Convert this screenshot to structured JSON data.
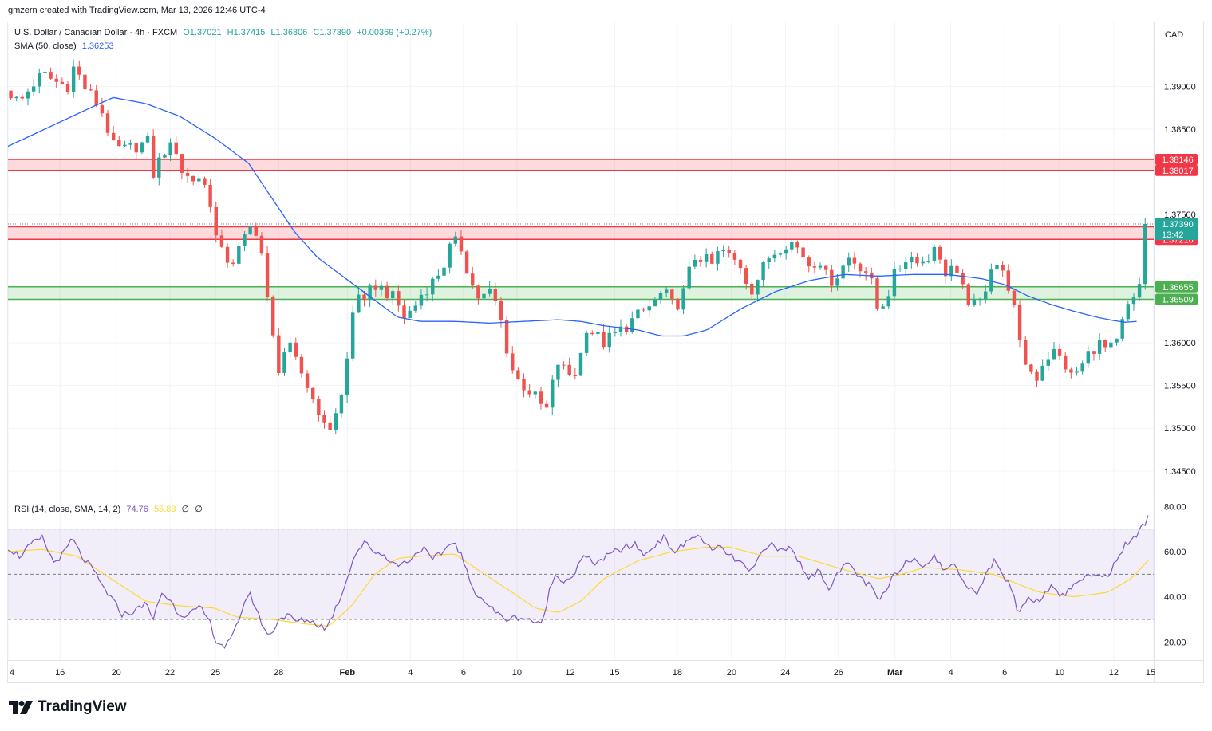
{
  "header": {
    "credit": "gmzern created with TradingView.com, Mar 13, 2026 12:46 UTC-4"
  },
  "legend": {
    "symbol": "U.S. Dollar / Canadian Dollar · 4h · FXCM",
    "open": "O1.37021",
    "high": "H1.37415",
    "low": "L1.36806",
    "close": "C1.37390",
    "change": "+0.00369 (+0.27%)",
    "sma_label": "SMA (50, close)",
    "sma_value": "1.36253",
    "rsi_label": "RSI (14, close, SMA, 14, 2)",
    "rsi_value": "74.76",
    "rsi_ma_value": "55.83",
    "rsi_extra1": "∅",
    "rsi_extra2": "∅"
  },
  "currency": "CAD",
  "brand": "TradingView",
  "colors": {
    "up": "#26a69a",
    "down": "#ef5350",
    "sma": "#2962ff",
    "rsi": "#7e57c2",
    "rsi_ma": "#fdd835",
    "resistance": "#f23645",
    "support": "#4caf50"
  },
  "chart_data": {
    "type": "candlestick",
    "price_axis": {
      "ylim": [
        1.342,
        1.3975
      ],
      "ticks": [
        "1.39000",
        "1.38500",
        "1.37500",
        "1.36000",
        "1.35500",
        "1.35000",
        "1.34500"
      ],
      "tick_values": [
        1.39,
        1.385,
        1.375,
        1.36,
        1.355,
        1.35,
        1.345
      ]
    },
    "time_axis": {
      "labels": [
        "4",
        "16",
        "20",
        "22",
        "25",
        "28",
        "Feb",
        "4",
        "6",
        "10",
        "12",
        "15",
        "18",
        "20",
        "24",
        "26",
        "Mar",
        "4",
        "6",
        "10",
        "12",
        "15"
      ],
      "positions": [
        0.0,
        0.0454,
        0.0945,
        0.1414,
        0.1811,
        0.2362,
        0.2962,
        0.3512,
        0.3976,
        0.4442,
        0.4906,
        0.5295,
        0.5842,
        0.6315,
        0.6785,
        0.7248,
        0.7742,
        0.8229,
        0.8699,
        0.9178,
        0.9651,
        1.0
      ]
    },
    "zones": [
      {
        "type": "resistance",
        "top": "1.38146",
        "bottom": "1.38017",
        "top_value": 1.38146,
        "bottom_value": 1.38017
      },
      {
        "type": "resistance",
        "top": "1.37357",
        "bottom": "1.37210",
        "top_value": 1.37357,
        "bottom_value": 1.3721
      },
      {
        "type": "support",
        "top": "1.36655",
        "bottom": "1.36509",
        "top_value": 1.36655,
        "bottom_value": 1.36509
      }
    ],
    "last_price": {
      "value": 1.3739,
      "label": "1.37390",
      "countdown": "13:42"
    },
    "anchors": [
      [
        0.0,
        1.3895
      ],
      [
        0.01,
        1.388
      ],
      [
        0.02,
        1.39
      ],
      [
        0.03,
        1.3915
      ],
      [
        0.042,
        1.3905
      ],
      [
        0.052,
        1.39
      ],
      [
        0.058,
        1.3925
      ],
      [
        0.066,
        1.39
      ],
      [
        0.075,
        1.3885
      ],
      [
        0.082,
        1.387
      ],
      [
        0.092,
        1.383
      ],
      [
        0.1,
        1.3825
      ],
      [
        0.112,
        1.383
      ],
      [
        0.122,
        1.3835
      ],
      [
        0.126,
        1.3795
      ],
      [
        0.136,
        1.3825
      ],
      [
        0.146,
        1.383
      ],
      [
        0.152,
        1.38
      ],
      [
        0.16,
        1.379
      ],
      [
        0.168,
        1.3795
      ],
      [
        0.176,
        1.377
      ],
      [
        0.182,
        1.372
      ],
      [
        0.188,
        1.37
      ],
      [
        0.196,
        1.3695
      ],
      [
        0.204,
        1.3715
      ],
      [
        0.21,
        1.373
      ],
      [
        0.214,
        1.374
      ],
      [
        0.22,
        1.372
      ],
      [
        0.228,
        1.363
      ],
      [
        0.236,
        1.357
      ],
      [
        0.244,
        1.36
      ],
      [
        0.25,
        1.358
      ],
      [
        0.258,
        1.356
      ],
      [
        0.264,
        1.354
      ],
      [
        0.272,
        1.352
      ],
      [
        0.278,
        1.349
      ],
      [
        0.286,
        1.352
      ],
      [
        0.292,
        1.354
      ],
      [
        0.296,
        1.358
      ],
      [
        0.3,
        1.363
      ],
      [
        0.306,
        1.366
      ],
      [
        0.312,
        1.364
      ],
      [
        0.318,
        1.367
      ],
      [
        0.33,
        1.366
      ],
      [
        0.338,
        1.365
      ],
      [
        0.346,
        1.363
      ],
      [
        0.354,
        1.364
      ],
      [
        0.362,
        1.366
      ],
      [
        0.37,
        1.367
      ],
      [
        0.38,
        1.369
      ],
      [
        0.388,
        1.372
      ],
      [
        0.396,
        1.371
      ],
      [
        0.404,
        1.367
      ],
      [
        0.412,
        1.365
      ],
      [
        0.42,
        1.366
      ],
      [
        0.428,
        1.364
      ],
      [
        0.434,
        1.36
      ],
      [
        0.442,
        1.356
      ],
      [
        0.45,
        1.355
      ],
      [
        0.458,
        1.354
      ],
      [
        0.466,
        1.3525
      ],
      [
        0.472,
        1.352
      ],
      [
        0.478,
        1.358
      ],
      [
        0.484,
        1.357
      ],
      [
        0.492,
        1.356
      ],
      [
        0.498,
        1.357
      ],
      [
        0.504,
        1.362
      ],
      [
        0.512,
        1.361
      ],
      [
        0.52,
        1.36
      ],
      [
        0.53,
        1.361
      ],
      [
        0.54,
        1.362
      ],
      [
        0.548,
        1.363
      ],
      [
        0.558,
        1.364
      ],
      [
        0.566,
        1.365
      ],
      [
        0.572,
        1.366
      ],
      [
        0.582,
        1.364
      ],
      [
        0.59,
        1.366
      ],
      [
        0.598,
        1.37
      ],
      [
        0.606,
        1.37
      ],
      [
        0.614,
        1.369
      ],
      [
        0.622,
        1.371
      ],
      [
        0.63,
        1.37
      ],
      [
        0.64,
        1.369
      ],
      [
        0.648,
        1.366
      ],
      [
        0.656,
        1.368
      ],
      [
        0.664,
        1.37
      ],
      [
        0.672,
        1.371
      ],
      [
        0.682,
        1.372
      ],
      [
        0.69,
        1.371
      ],
      [
        0.7,
        1.369
      ],
      [
        0.708,
        1.37
      ],
      [
        0.716,
        1.367
      ],
      [
        0.724,
        1.368
      ],
      [
        0.734,
        1.37
      ],
      [
        0.744,
        1.369
      ],
      [
        0.752,
        1.368
      ],
      [
        0.758,
        1.364
      ],
      [
        0.766,
        1.365
      ],
      [
        0.774,
        1.368
      ],
      [
        0.784,
        1.37
      ],
      [
        0.794,
        1.37
      ],
      [
        0.802,
        1.369
      ],
      [
        0.808,
        1.372
      ],
      [
        0.816,
        1.368
      ],
      [
        0.824,
        1.369
      ],
      [
        0.83,
        1.367
      ],
      [
        0.838,
        1.365
      ],
      [
        0.846,
        1.364
      ],
      [
        0.852,
        1.366
      ],
      [
        0.86,
        1.37
      ],
      [
        0.868,
        1.368
      ],
      [
        0.876,
        1.366
      ],
      [
        0.882,
        1.36
      ],
      [
        0.89,
        1.357
      ],
      [
        0.898,
        1.356
      ],
      [
        0.904,
        1.358
      ],
      [
        0.912,
        1.359
      ],
      [
        0.92,
        1.358
      ],
      [
        0.928,
        1.356
      ],
      [
        0.936,
        1.357
      ],
      [
        0.944,
        1.359
      ],
      [
        0.952,
        1.36
      ],
      [
        0.96,
        1.359
      ],
      [
        0.968,
        1.36
      ],
      [
        0.976,
        1.364
      ],
      [
        0.984,
        1.365
      ],
      [
        0.99,
        1.368
      ],
      [
        0.995,
        1.3721
      ]
    ],
    "sma_anchors": [
      [
        0.0,
        1.383
      ],
      [
        0.04,
        1.3855
      ],
      [
        0.08,
        1.388
      ],
      [
        0.092,
        1.3887
      ],
      [
        0.12,
        1.388
      ],
      [
        0.15,
        1.3865
      ],
      [
        0.18,
        1.384
      ],
      [
        0.21,
        1.381
      ],
      [
        0.23,
        1.377
      ],
      [
        0.25,
        1.373
      ],
      [
        0.27,
        1.37
      ],
      [
        0.3,
        1.367
      ],
      [
        0.32,
        1.365
      ],
      [
        0.34,
        1.363
      ],
      [
        0.36,
        1.3625
      ],
      [
        0.39,
        1.3625
      ],
      [
        0.42,
        1.3623
      ],
      [
        0.45,
        1.3625
      ],
      [
        0.48,
        1.3627
      ],
      [
        0.5,
        1.3625
      ],
      [
        0.52,
        1.362
      ],
      [
        0.55,
        1.3615
      ],
      [
        0.57,
        1.3608
      ],
      [
        0.59,
        1.3608
      ],
      [
        0.61,
        1.3615
      ],
      [
        0.64,
        1.364
      ],
      [
        0.67,
        1.366
      ],
      [
        0.7,
        1.3673
      ],
      [
        0.73,
        1.368
      ],
      [
        0.76,
        1.3678
      ],
      [
        0.79,
        1.368
      ],
      [
        0.82,
        1.368
      ],
      [
        0.85,
        1.3675
      ],
      [
        0.87,
        1.3668
      ],
      [
        0.89,
        1.3655
      ],
      [
        0.91,
        1.3645
      ],
      [
        0.93,
        1.3637
      ],
      [
        0.95,
        1.363
      ],
      [
        0.965,
        1.3626
      ],
      [
        0.975,
        1.3624
      ],
      [
        0.985,
        1.3625
      ]
    ],
    "rsi": {
      "ylim": [
        12,
        84
      ],
      "ticks": [
        "80.00",
        "60.00",
        "40.00",
        "20.00"
      ],
      "tick_values": [
        80,
        60,
        40,
        20
      ],
      "levels": [
        70,
        50,
        30
      ],
      "anchors": [
        [
          0.0,
          62
        ],
        [
          0.01,
          58
        ],
        [
          0.02,
          63
        ],
        [
          0.03,
          66
        ],
        [
          0.04,
          55
        ],
        [
          0.05,
          60
        ],
        [
          0.056,
          66
        ],
        [
          0.064,
          58
        ],
        [
          0.074,
          52
        ],
        [
          0.082,
          45
        ],
        [
          0.092,
          38
        ],
        [
          0.1,
          32
        ],
        [
          0.112,
          34
        ],
        [
          0.12,
          38
        ],
        [
          0.126,
          29
        ],
        [
          0.134,
          42
        ],
        [
          0.142,
          38
        ],
        [
          0.15,
          32
        ],
        [
          0.16,
          33
        ],
        [
          0.168,
          35
        ],
        [
          0.176,
          29
        ],
        [
          0.182,
          20
        ],
        [
          0.19,
          18
        ],
        [
          0.196,
          22
        ],
        [
          0.204,
          34
        ],
        [
          0.21,
          42
        ],
        [
          0.214,
          38
        ],
        [
          0.22,
          30
        ],
        [
          0.228,
          22
        ],
        [
          0.236,
          30
        ],
        [
          0.244,
          32
        ],
        [
          0.252,
          29
        ],
        [
          0.26,
          30
        ],
        [
          0.27,
          28
        ],
        [
          0.278,
          26
        ],
        [
          0.286,
          35
        ],
        [
          0.292,
          42
        ],
        [
          0.298,
          52
        ],
        [
          0.304,
          60
        ],
        [
          0.312,
          64
        ],
        [
          0.32,
          60
        ],
        [
          0.33,
          58
        ],
        [
          0.338,
          54
        ],
        [
          0.346,
          55
        ],
        [
          0.354,
          58
        ],
        [
          0.362,
          62
        ],
        [
          0.37,
          56
        ],
        [
          0.38,
          60
        ],
        [
          0.388,
          65
        ],
        [
          0.396,
          58
        ],
        [
          0.404,
          45
        ],
        [
          0.412,
          40
        ],
        [
          0.42,
          36
        ],
        [
          0.428,
          32
        ],
        [
          0.436,
          30
        ],
        [
          0.446,
          31
        ],
        [
          0.456,
          30
        ],
        [
          0.466,
          27
        ],
        [
          0.472,
          42
        ],
        [
          0.478,
          50
        ],
        [
          0.486,
          47
        ],
        [
          0.494,
          50
        ],
        [
          0.502,
          58
        ],
        [
          0.512,
          55
        ],
        [
          0.52,
          57
        ],
        [
          0.53,
          60
        ],
        [
          0.54,
          62
        ],
        [
          0.548,
          63
        ],
        [
          0.556,
          58
        ],
        [
          0.566,
          64
        ],
        [
          0.572,
          66
        ],
        [
          0.582,
          60
        ],
        [
          0.59,
          63
        ],
        [
          0.598,
          67
        ],
        [
          0.606,
          66
        ],
        [
          0.614,
          60
        ],
        [
          0.622,
          62
        ],
        [
          0.63,
          58
        ],
        [
          0.64,
          55
        ],
        [
          0.648,
          50
        ],
        [
          0.656,
          58
        ],
        [
          0.664,
          64
        ],
        [
          0.672,
          60
        ],
        [
          0.682,
          62
        ],
        [
          0.69,
          56
        ],
        [
          0.7,
          48
        ],
        [
          0.708,
          52
        ],
        [
          0.716,
          44
        ],
        [
          0.724,
          50
        ],
        [
          0.734,
          55
        ],
        [
          0.744,
          48
        ],
        [
          0.752,
          45
        ],
        [
          0.76,
          38
        ],
        [
          0.768,
          44
        ],
        [
          0.774,
          50
        ],
        [
          0.782,
          55
        ],
        [
          0.792,
          57
        ],
        [
          0.8,
          54
        ],
        [
          0.808,
          58
        ],
        [
          0.816,
          52
        ],
        [
          0.824,
          55
        ],
        [
          0.83,
          50
        ],
        [
          0.838,
          45
        ],
        [
          0.846,
          42
        ],
        [
          0.852,
          48
        ],
        [
          0.86,
          56
        ],
        [
          0.868,
          50
        ],
        [
          0.876,
          44
        ],
        [
          0.882,
          32
        ],
        [
          0.89,
          40
        ],
        [
          0.898,
          38
        ],
        [
          0.906,
          42
        ],
        [
          0.912,
          46
        ],
        [
          0.92,
          40
        ],
        [
          0.928,
          44
        ],
        [
          0.936,
          48
        ],
        [
          0.944,
          50
        ],
        [
          0.952,
          48
        ],
        [
          0.96,
          50
        ],
        [
          0.968,
          56
        ],
        [
          0.976,
          64
        ],
        [
          0.984,
          66
        ],
        [
          0.99,
          71
        ],
        [
          0.995,
          75
        ]
      ],
      "ma_anchors": [
        [
          0.0,
          60
        ],
        [
          0.03,
          61
        ],
        [
          0.06,
          58
        ],
        [
          0.09,
          48
        ],
        [
          0.12,
          38
        ],
        [
          0.15,
          36
        ],
        [
          0.18,
          35
        ],
        [
          0.2,
          31
        ],
        [
          0.23,
          30
        ],
        [
          0.26,
          28
        ],
        [
          0.28,
          27
        ],
        [
          0.3,
          36
        ],
        [
          0.32,
          50
        ],
        [
          0.34,
          57
        ],
        [
          0.36,
          58
        ],
        [
          0.39,
          59
        ],
        [
          0.41,
          52
        ],
        [
          0.44,
          42
        ],
        [
          0.46,
          35
        ],
        [
          0.48,
          33
        ],
        [
          0.5,
          38
        ],
        [
          0.52,
          48
        ],
        [
          0.55,
          56
        ],
        [
          0.58,
          60
        ],
        [
          0.61,
          62
        ],
        [
          0.63,
          62
        ],
        [
          0.66,
          58
        ],
        [
          0.69,
          58
        ],
        [
          0.71,
          55
        ],
        [
          0.73,
          52
        ],
        [
          0.76,
          48
        ],
        [
          0.78,
          50
        ],
        [
          0.8,
          53
        ],
        [
          0.83,
          52
        ],
        [
          0.86,
          50
        ],
        [
          0.88,
          46
        ],
        [
          0.9,
          42
        ],
        [
          0.93,
          40
        ],
        [
          0.96,
          42
        ],
        [
          0.98,
          48
        ],
        [
          0.995,
          56
        ]
      ]
    }
  }
}
